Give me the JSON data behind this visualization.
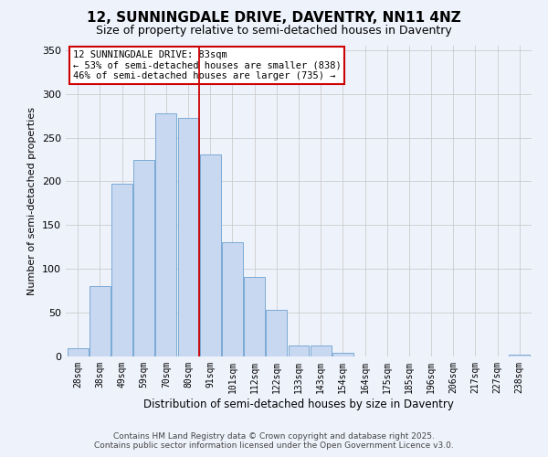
{
  "title": "12, SUNNINGDALE DRIVE, DAVENTRY, NN11 4NZ",
  "subtitle": "Size of property relative to semi-detached houses in Daventry",
  "xlabel": "Distribution of semi-detached houses by size in Daventry",
  "ylabel": "Number of semi-detached properties",
  "bar_labels": [
    "28sqm",
    "38sqm",
    "49sqm",
    "59sqm",
    "70sqm",
    "80sqm",
    "91sqm",
    "101sqm",
    "112sqm",
    "122sqm",
    "133sqm",
    "143sqm",
    "154sqm",
    "164sqm",
    "175sqm",
    "185sqm",
    "196sqm",
    "206sqm",
    "217sqm",
    "227sqm",
    "238sqm"
  ],
  "bar_values": [
    9,
    80,
    197,
    225,
    278,
    273,
    231,
    130,
    91,
    53,
    13,
    13,
    4,
    0,
    0,
    0,
    0,
    0,
    0,
    0,
    2
  ],
  "bar_color": "#c8d8f0",
  "bar_edgecolor": "#7baad4",
  "grid_color": "#cccccc",
  "background_color": "#eef2fb",
  "vline_x": 5.5,
  "vline_color": "#cc0000",
  "annotation_title": "12 SUNNINGDALE DRIVE: 83sqm",
  "annotation_line1": "← 53% of semi-detached houses are smaller (838)",
  "annotation_line2": "46% of semi-detached houses are larger (735) →",
  "annotation_box_color": "#ffffff",
  "annotation_box_edgecolor": "#cc0000",
  "ylim": [
    0,
    355
  ],
  "yticks": [
    0,
    50,
    100,
    150,
    200,
    250,
    300,
    350
  ],
  "footer_line1": "Contains HM Land Registry data © Crown copyright and database right 2025.",
  "footer_line2": "Contains public sector information licensed under the Open Government Licence v3.0.",
  "title_fontsize": 11,
  "subtitle_fontsize": 9,
  "footer_fontsize": 6.5,
  "annotation_fontsize": 7.5,
  "ylabel_fontsize": 8,
  "xlabel_fontsize": 8.5
}
